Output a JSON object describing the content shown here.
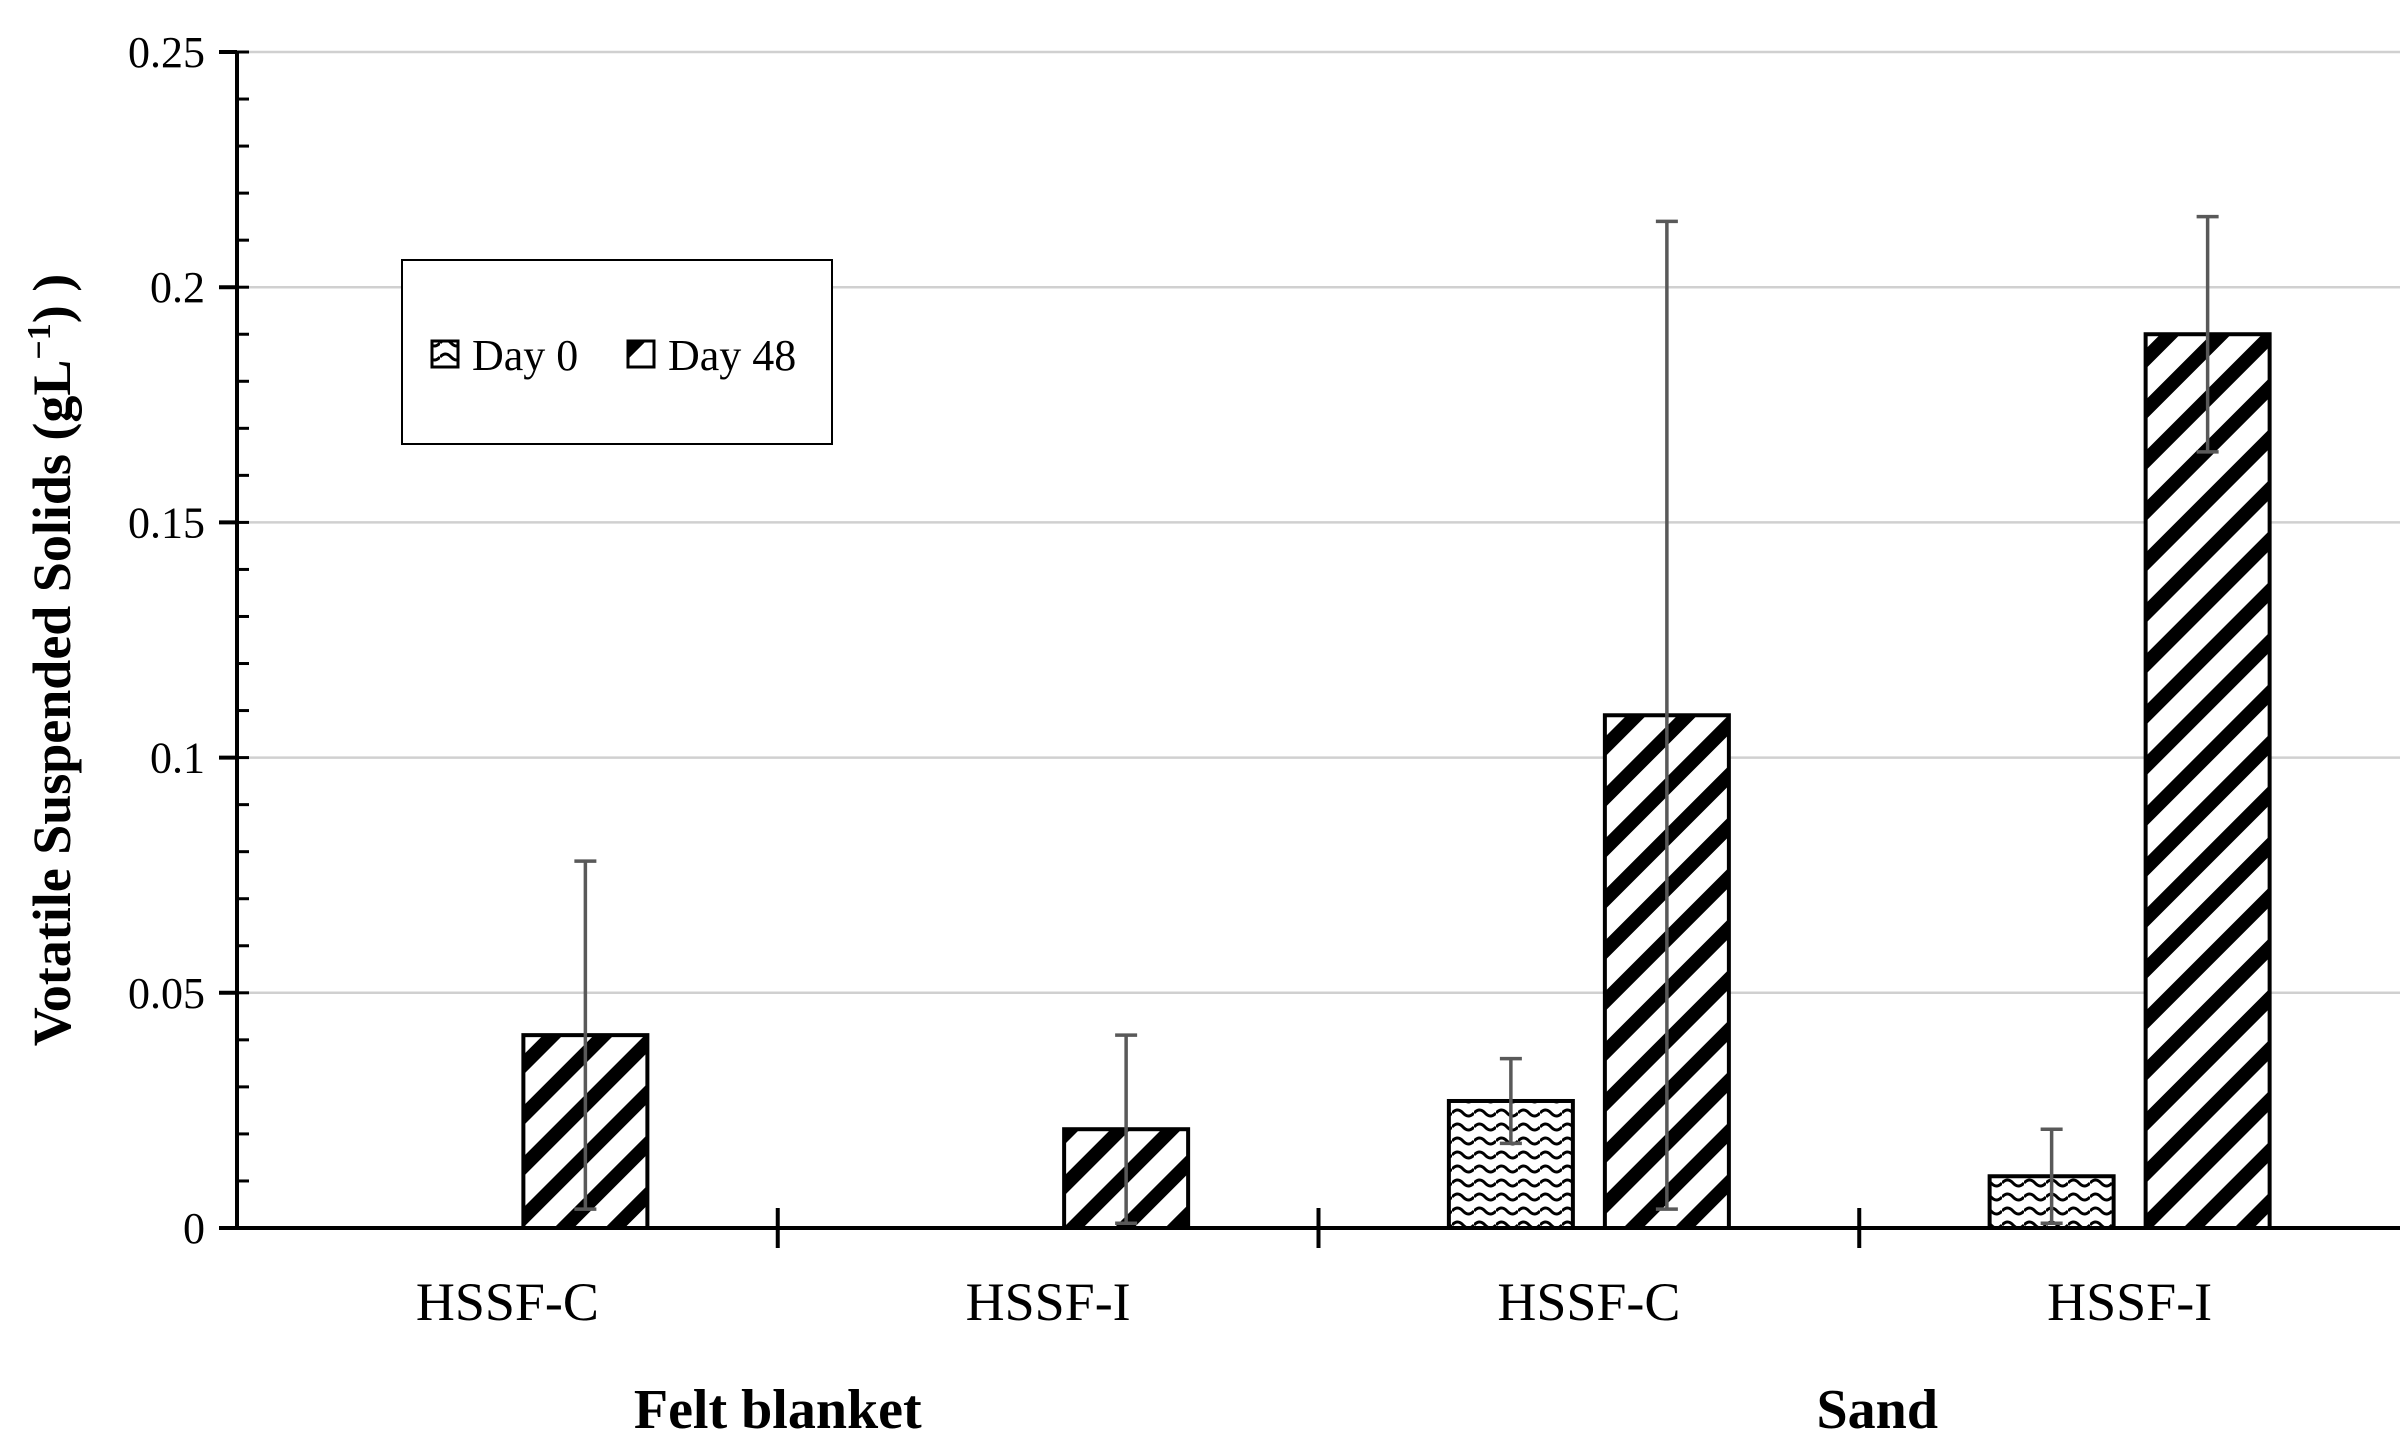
{
  "chart_data": {
    "type": "bar",
    "title": "",
    "ylabel": {
      "main": "Votatile Suspended Solids (gL",
      "sup": "−1",
      "end": ") )"
    },
    "ylim": [
      0,
      0.25
    ],
    "yticks": [
      0,
      0.05,
      0.1,
      0.15,
      0.2,
      0.25
    ],
    "ytick_labels": [
      "0",
      "0.05",
      "0.1",
      "0.15",
      "0.2",
      "0.25"
    ],
    "grid": true,
    "legend_position": "top-left",
    "categories": [
      "HSSF-C",
      "HSSF-I",
      "HSSF-C",
      "HSSF-I"
    ],
    "groups": [
      {
        "label": "Felt blanket",
        "categories": [
          0,
          1
        ]
      },
      {
        "label": "Sand",
        "categories": [
          2,
          3
        ]
      }
    ],
    "series": [
      {
        "name": "Day 0",
        "pattern": "wave",
        "values": [
          null,
          null,
          0.027,
          0.011
        ],
        "error": [
          null,
          null,
          0.009,
          0.01
        ]
      },
      {
        "name": "Day 48",
        "pattern": "diagonal",
        "values": [
          0.041,
          0.021,
          0.109,
          0.19
        ],
        "error": [
          0.037,
          0.02,
          0.105,
          0.025
        ]
      }
    ]
  }
}
